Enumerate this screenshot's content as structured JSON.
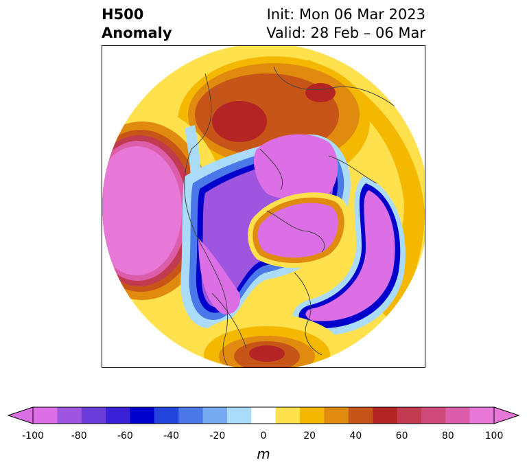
{
  "title": {
    "left_line1": "H500",
    "left_line2": "Anomaly",
    "right_line1": "Init: Mon 06 Mar 2023",
    "right_line2": "Valid: 28 Feb – 06 Mar"
  },
  "colorbar": {
    "unit": "m",
    "levels": [
      -100,
      -90,
      -80,
      -70,
      -60,
      -50,
      -40,
      -30,
      -20,
      -10,
      10,
      20,
      30,
      40,
      50,
      60,
      70,
      80,
      90,
      100
    ],
    "colors": [
      "#dc6ee6",
      "#9e56e0",
      "#6a3ddb",
      "#3b1fd6",
      "#0000cc",
      "#2244dd",
      "#4a78e8",
      "#76aaf0",
      "#aadcfa",
      "#ffffff",
      "#ffe14d",
      "#f5b800",
      "#e08a10",
      "#c85518",
      "#b42424",
      "#c23a50",
      "#cf4a78",
      "#dc5eaa",
      "#e878d8"
    ],
    "under_color": "#dc6ee6",
    "over_color": "#e878d8",
    "tick_labels": [
      "-100",
      "-80",
      "-60",
      "-40",
      "-20",
      "0",
      "20",
      "40",
      "60",
      "80",
      "100"
    ]
  },
  "map": {
    "projection": "north-polar-stereographic",
    "features": [
      {
        "name": "north-pacific-low",
        "sign": "negative",
        "peak_m": -100
      },
      {
        "name": "bering-ridge",
        "sign": "positive",
        "peak_m": 60
      },
      {
        "name": "western-europe-trough",
        "sign": "negative",
        "peak_m": -100
      },
      {
        "name": "greenland-arctic-ridge",
        "sign": "positive",
        "peak_m": 60
      },
      {
        "name": "central-asia-low",
        "sign": "negative",
        "peak_m": -100
      },
      {
        "name": "southern-us-ridge",
        "sign": "positive",
        "peak_m": 60
      }
    ]
  }
}
